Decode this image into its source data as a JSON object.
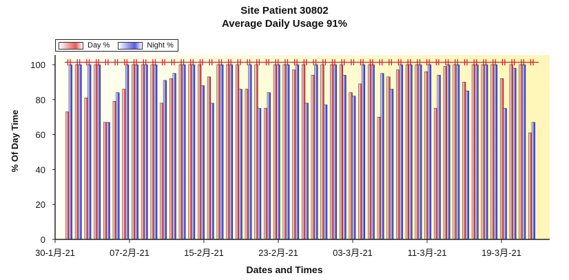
{
  "chart_data": {
    "type": "bar",
    "title": "Site Patient 30802",
    "subtitle": "Average Daily Usage 91%",
    "xlabel": "Dates and Times",
    "ylabel": "% Of Day Time",
    "ylim": [
      0,
      100
    ],
    "yticks": [
      0,
      20,
      40,
      60,
      80,
      100
    ],
    "xtick_labels": [
      "30-1月-21",
      "07-2月-21",
      "15-2月-21",
      "23-2月-21",
      "03-3月-21",
      "11-3月-21",
      "19-3月-21"
    ],
    "legend_position": "top-left",
    "grid": false,
    "series": [
      {
        "name": "Day %",
        "color": "#e03030",
        "values": [
          73,
          100,
          81,
          100,
          67,
          79,
          86,
          100,
          100,
          100,
          78,
          92,
          100,
          100,
          100,
          93,
          100,
          100,
          100,
          86,
          100,
          75,
          100,
          100,
          97,
          100,
          94,
          100,
          100,
          100,
          84,
          89,
          100,
          70,
          93,
          97,
          100,
          100,
          96,
          75,
          99,
          100,
          90,
          100,
          100,
          100,
          92,
          100,
          100,
          61
        ]
      },
      {
        "name": "Night %",
        "color": "#3030e0",
        "values": [
          100,
          100,
          100,
          100,
          67,
          84,
          100,
          100,
          100,
          100,
          91,
          95,
          100,
          100,
          88,
          78,
          100,
          100,
          86,
          100,
          75,
          84,
          100,
          100,
          100,
          78,
          100,
          77,
          100,
          94,
          82,
          100,
          100,
          95,
          86,
          100,
          100,
          100,
          100,
          94,
          100,
          100,
          85,
          100,
          100,
          100,
          75,
          98,
          100,
          67
        ]
      }
    ],
    "top_markers": {
      "color": "#d02020"
    }
  }
}
